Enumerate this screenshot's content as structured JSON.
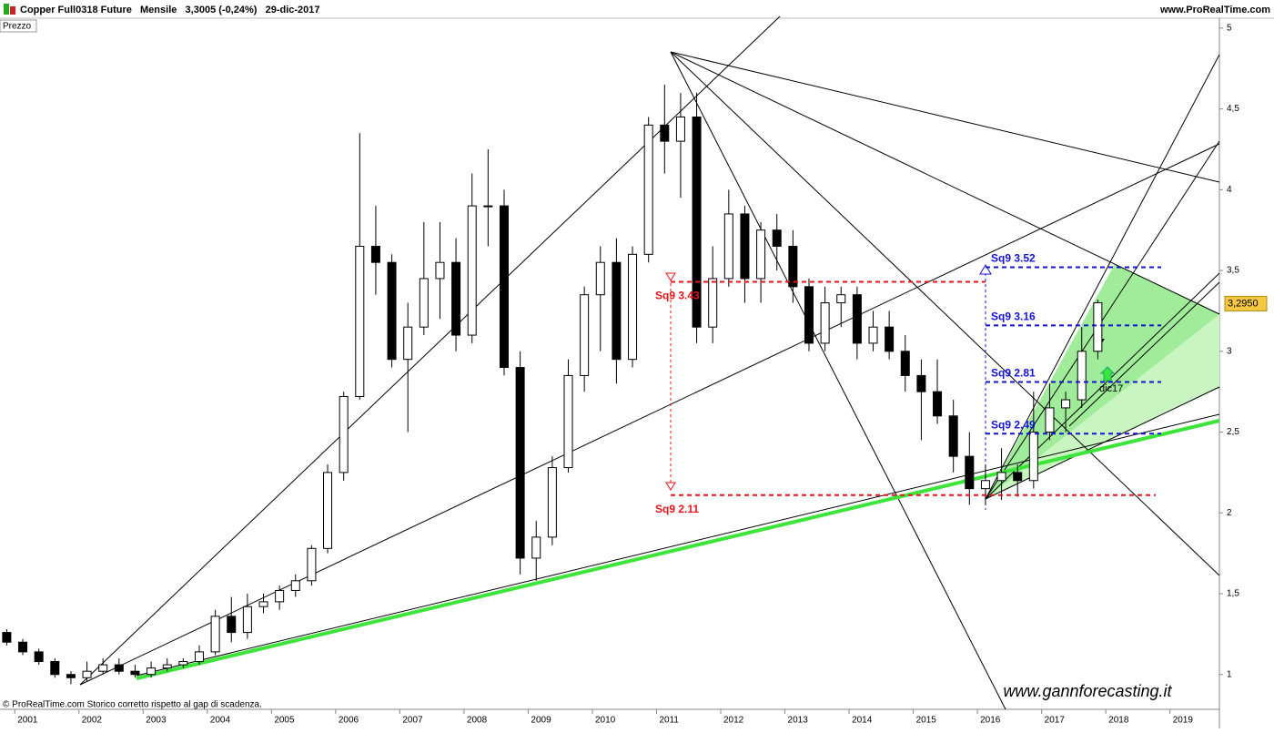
{
  "chart_data": {
    "type": "candlestick",
    "title": "Copper Full0318 Future   Mensile   3,3005 (-0,24%)   29-dic-2017",
    "source": "www.ProRealTime.com",
    "panel_label": "Prezzo",
    "footer": "© ProRealTime.com Storico corretto rispetto al gap di scadenza.",
    "watermark": "www.gannforecasting.it",
    "last_price": {
      "value": 3.295,
      "label": "3,2950"
    },
    "xlim": [
      2000.77,
      2019.77
    ],
    "xticks": [
      2001,
      2002,
      2003,
      2004,
      2005,
      2006,
      2007,
      2008,
      2009,
      2010,
      2011,
      2012,
      2013,
      2014,
      2015,
      2016,
      2017,
      2018,
      2019
    ],
    "ylim": [
      0.79,
      5.05
    ],
    "yticks": [
      1,
      {
        "value": 1.5,
        "label": "1,5"
      },
      2,
      {
        "value": 2.5,
        "label": "2,5"
      },
      3,
      {
        "value": 3.5,
        "label": "3,5"
      },
      4,
      {
        "value": 4.5,
        "label": "4,5"
      },
      5
    ],
    "up_color": "#ffffff",
    "down_color": "#000000",
    "x": [
      2000.875,
      2001.125,
      2001.375,
      2001.625,
      2001.875,
      2002.125,
      2002.375,
      2002.625,
      2002.875,
      2003.125,
      2003.375,
      2003.625,
      2003.875,
      2004.125,
      2004.375,
      2004.625,
      2004.875,
      2005.125,
      2005.375,
      2005.625,
      2005.875,
      2006.125,
      2006.375,
      2006.625,
      2006.875,
      2007.125,
      2007.375,
      2007.625,
      2007.875,
      2008.125,
      2008.375,
      2008.625,
      2008.875,
      2009.125,
      2009.375,
      2009.625,
      2009.875,
      2010.125,
      2010.375,
      2010.625,
      2010.875,
      2011.125,
      2011.375,
      2011.625,
      2011.875,
      2012.125,
      2012.375,
      2012.625,
      2012.875,
      2013.125,
      2013.375,
      2013.625,
      2013.875,
      2014.125,
      2014.375,
      2014.625,
      2014.875,
      2015.125,
      2015.375,
      2015.625,
      2015.875,
      2016.125,
      2016.375,
      2016.625,
      2016.875,
      2017.125,
      2017.375,
      2017.625,
      2017.875
    ],
    "open": [
      1.26,
      1.2,
      1.14,
      1.08,
      1.0,
      0.98,
      1.02,
      1.06,
      1.02,
      1.0,
      1.04,
      1.06,
      1.08,
      1.14,
      1.36,
      1.26,
      1.42,
      1.45,
      1.52,
      1.58,
      1.78,
      2.25,
      2.72,
      3.65,
      3.55,
      2.95,
      3.15,
      3.45,
      3.55,
      3.1,
      3.9,
      3.9,
      2.9,
      1.72,
      1.85,
      2.28,
      2.85,
      3.35,
      3.55,
      2.95,
      3.6,
      4.4,
      4.3,
      4.45,
      3.15,
      3.45,
      3.85,
      3.45,
      3.75,
      3.65,
      3.4,
      3.05,
      3.3,
      3.35,
      3.05,
      3.15,
      3.0,
      2.85,
      2.75,
      2.6,
      2.35,
      2.15,
      2.2,
      2.25,
      2.2,
      2.5,
      2.65,
      2.7,
      3.0
    ],
    "high": [
      1.28,
      1.22,
      1.16,
      1.1,
      1.02,
      1.08,
      1.1,
      1.1,
      1.06,
      1.08,
      1.1,
      1.1,
      1.18,
      1.4,
      1.48,
      1.5,
      1.5,
      1.55,
      1.62,
      1.8,
      2.3,
      2.75,
      4.35,
      3.9,
      3.6,
      3.3,
      3.8,
      3.8,
      3.7,
      4.1,
      4.25,
      4.0,
      3.0,
      1.95,
      2.35,
      2.95,
      3.4,
      3.65,
      3.7,
      3.65,
      4.45,
      4.65,
      4.6,
      4.6,
      3.65,
      4.0,
      3.9,
      3.8,
      3.85,
      3.75,
      3.45,
      3.4,
      3.4,
      3.4,
      3.25,
      3.25,
      3.1,
      2.95,
      2.95,
      2.7,
      2.5,
      2.3,
      2.4,
      2.3,
      2.75,
      2.8,
      2.75,
      3.15,
      3.32
    ],
    "low": [
      1.18,
      1.12,
      1.06,
      0.98,
      0.94,
      0.96,
      1.0,
      1.0,
      0.98,
      0.98,
      1.02,
      1.04,
      1.06,
      1.12,
      1.2,
      1.22,
      1.38,
      1.4,
      1.48,
      1.55,
      1.75,
      2.2,
      2.7,
      3.35,
      2.9,
      2.5,
      3.1,
      3.2,
      3.0,
      3.05,
      3.65,
      2.85,
      1.62,
      1.58,
      1.8,
      2.25,
      2.75,
      3.0,
      2.8,
      2.9,
      3.55,
      4.1,
      3.95,
      3.05,
      3.05,
      3.4,
      3.3,
      3.3,
      3.5,
      3.3,
      3.0,
      3.0,
      3.15,
      2.95,
      3.0,
      2.95,
      2.75,
      2.45,
      2.55,
      2.25,
      2.05,
      2.05,
      2.08,
      2.1,
      2.15,
      2.45,
      2.5,
      2.65,
      2.95
    ],
    "close": [
      1.2,
      1.14,
      1.08,
      1.0,
      0.98,
      1.02,
      1.06,
      1.02,
      1.0,
      1.04,
      1.06,
      1.08,
      1.14,
      1.36,
      1.26,
      1.42,
      1.45,
      1.52,
      1.58,
      1.78,
      2.25,
      2.72,
      3.65,
      3.55,
      2.95,
      3.15,
      3.45,
      3.55,
      3.1,
      3.9,
      3.9,
      2.9,
      1.72,
      1.85,
      2.28,
      2.85,
      3.35,
      3.55,
      2.95,
      3.6,
      4.4,
      4.3,
      4.45,
      3.15,
      3.45,
      3.85,
      3.45,
      3.75,
      3.65,
      3.4,
      3.05,
      3.3,
      3.35,
      3.05,
      3.15,
      3.0,
      2.85,
      2.75,
      2.6,
      2.35,
      2.15,
      2.2,
      2.25,
      2.2,
      2.5,
      2.65,
      2.7,
      3.0,
      3.3
    ],
    "levels": [
      {
        "label": "Sq9 3.43",
        "value": 3.43,
        "color": "#e8141b"
      },
      {
        "label": "Sq9 2.11",
        "value": 2.11,
        "color": "#e8141b"
      },
      {
        "label": "Sq9 3.52",
        "value": 3.52,
        "color": "#1414d2"
      },
      {
        "label": "Sq9 3.16",
        "value": 3.16,
        "color": "#1414d2"
      },
      {
        "label": "Sq9 2.81",
        "value": 2.81,
        "color": "#1414d2"
      },
      {
        "label": "Sq9 2.49",
        "value": 2.49,
        "color": "#1414d2"
      }
    ],
    "marker_label": "dic17"
  }
}
